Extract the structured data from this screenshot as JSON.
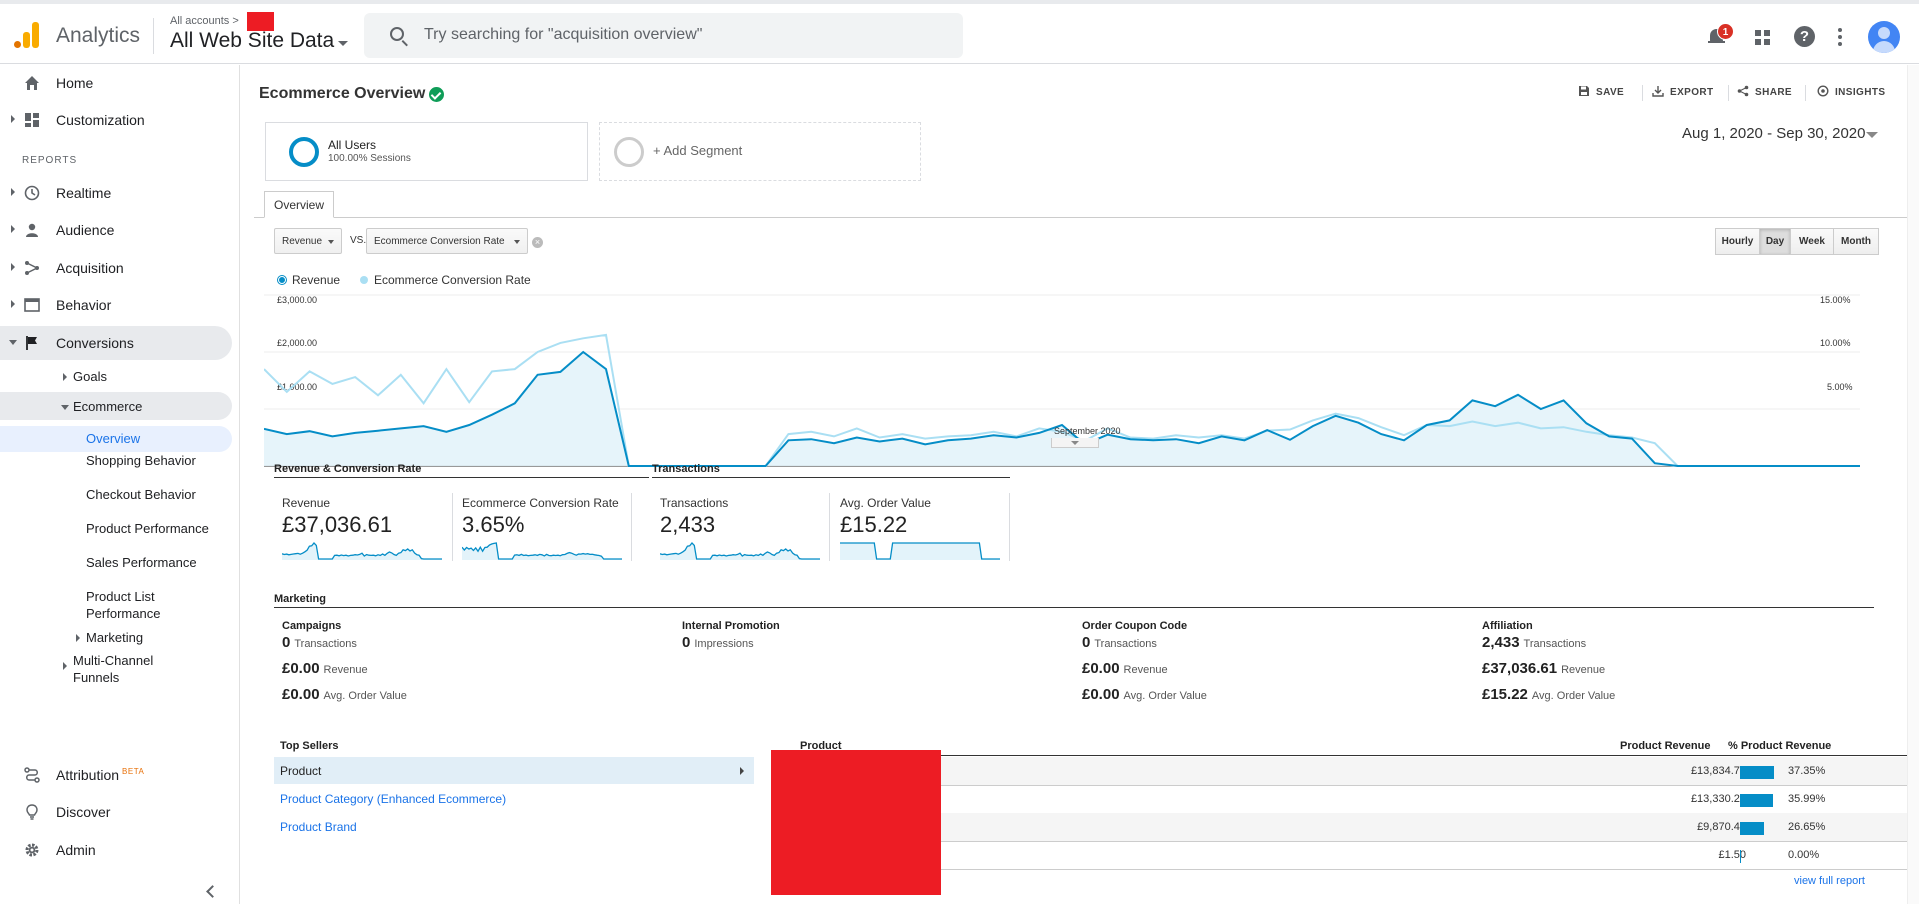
{
  "header": {
    "app_name": "Analytics",
    "breadcrumb": "All accounts >",
    "property": "All Web Site Data",
    "search_placeholder": "Try searching for \"acquisition overview\"",
    "notification_count": "1",
    "help_glyph": "?"
  },
  "sidebar": {
    "home": "Home",
    "customization": "Customization",
    "reports_header": "REPORTS",
    "realtime": "Realtime",
    "audience": "Audience",
    "acquisition": "Acquisition",
    "behavior": "Behavior",
    "conversions": "Conversions",
    "goals": "Goals",
    "ecommerce": "Ecommerce",
    "leaves": [
      "Overview",
      "Shopping Behavior",
      "Checkout Behavior",
      "Product Performance",
      "Sales Performance",
      "Product List Performance"
    ],
    "marketing": "Marketing",
    "mcf": "Multi-Channel Funnels",
    "attribution": "Attribution",
    "beta": "BETA",
    "discover": "Discover",
    "admin": "Admin"
  },
  "page": {
    "title": "Ecommerce Overview",
    "tools": {
      "save": "SAVE",
      "export": "EXPORT",
      "share": "SHARE",
      "insights": "INSIGHTS"
    },
    "segment": {
      "name": "All Users",
      "sub": "100.00% Sessions",
      "add": "+ Add Segment"
    },
    "date_range": "Aug 1, 2020 - Sep 30, 2020",
    "tab": "Overview",
    "metric1": "Revenue",
    "vs": "VS.",
    "metric2": "Ecommerce Conversion Rate",
    "clear": "×",
    "granularity": [
      "Hourly",
      "Day",
      "Week",
      "Month"
    ],
    "granularity_selected": "Day"
  },
  "chart_data": {
    "type": "line",
    "x_label": "September 2020",
    "y_left_ticks": [
      "£3,000.00",
      "£2,000.00",
      "£1,000.00"
    ],
    "y_right_ticks": [
      "15.00%",
      "10.00%",
      "5.00%"
    ],
    "y_left_range": [
      0,
      3000
    ],
    "y_right_range": [
      0,
      15
    ],
    "colors": {
      "revenue": "#058dc7",
      "conversion": "#aadff3"
    },
    "series": [
      {
        "name": "Revenue",
        "values": [
          650,
          560,
          610,
          520,
          580,
          620,
          660,
          700,
          600,
          720,
          900,
          1100,
          1600,
          1650,
          2000,
          1700,
          0,
          0,
          0,
          0,
          0,
          0,
          0,
          450,
          470,
          400,
          500,
          430,
          480,
          380,
          450,
          480,
          540,
          500,
          580,
          720,
          380,
          550,
          470,
          450,
          470,
          400,
          520,
          450,
          630,
          460,
          700,
          880,
          760,
          560,
          450,
          720,
          800,
          1150,
          1050,
          1250,
          1000,
          1150,
          750,
          520,
          480,
          50,
          0,
          0,
          0,
          0,
          0,
          0,
          0,
          0,
          0
        ]
      },
      {
        "name": "Ecommerce Conversion Rate",
        "values": [
          8.5,
          6.5,
          8.3,
          7.2,
          7.8,
          6.2,
          8.0,
          5.5,
          8.5,
          5.6,
          8.3,
          8.5,
          10.0,
          10.8,
          11.2,
          11.5,
          0,
          0,
          0,
          0,
          0,
          0,
          0,
          2.8,
          3.0,
          2.6,
          3.3,
          2.5,
          2.8,
          2.4,
          2.6,
          2.7,
          3.0,
          2.6,
          3.3,
          3.0,
          2.2,
          3.3,
          2.5,
          2.4,
          2.7,
          2.5,
          2.7,
          2.4,
          3.1,
          3.2,
          4.0,
          4.6,
          4.2,
          3.4,
          2.7,
          3.6,
          3.5,
          3.9,
          3.5,
          3.8,
          3.3,
          3.4,
          3.0,
          2.7,
          2.5,
          2.0,
          0,
          0,
          0,
          0,
          0,
          0,
          0,
          0,
          0
        ]
      }
    ]
  },
  "summary": {
    "rev_conv_header": "Revenue & Conversion Rate",
    "transactions_header": "Transactions",
    "kpis": [
      {
        "label": "Revenue",
        "value": "£37,036.61"
      },
      {
        "label": "Ecommerce Conversion Rate",
        "value": "3.65%"
      },
      {
        "label": "Transactions",
        "value": "2,433"
      },
      {
        "label": "Avg. Order Value",
        "value": "£15.22"
      }
    ]
  },
  "marketing": {
    "header": "Marketing",
    "columns": [
      {
        "title": "Campaigns",
        "rows": [
          [
            "0",
            "Transactions"
          ],
          [
            "£0.00",
            "Revenue"
          ],
          [
            "£0.00",
            "Avg. Order Value"
          ]
        ]
      },
      {
        "title": "Internal Promotion",
        "rows": [
          [
            "0",
            "Impressions"
          ]
        ]
      },
      {
        "title": "Order Coupon Code",
        "rows": [
          [
            "0",
            "Transactions"
          ],
          [
            "£0.00",
            "Revenue"
          ],
          [
            "£0.00",
            "Avg. Order Value"
          ]
        ]
      },
      {
        "title": "Affiliation",
        "rows": [
          [
            "2,433",
            "Transactions"
          ],
          [
            "£37,036.61",
            "Revenue"
          ],
          [
            "£15.22",
            "Avg. Order Value"
          ]
        ]
      }
    ]
  },
  "top_sellers": {
    "header": "Top Sellers",
    "items": [
      "Product",
      "Product Category (Enhanced Ecommerce)",
      "Product Brand"
    ],
    "col_product": "Product",
    "col_revenue": "Product Revenue",
    "col_pct": "% Product Revenue",
    "rows": [
      {
        "revenue": "£13,834.71",
        "pct": "37.35%",
        "share": 37.35
      },
      {
        "revenue": "£13,330.20",
        "pct": "35.99%",
        "share": 35.99
      },
      {
        "revenue": "£9,870.44",
        "pct": "26.65%",
        "share": 26.65
      },
      {
        "revenue": "£1.50",
        "pct": "0.00%",
        "share": 0
      }
    ],
    "full_report": "view full report"
  }
}
